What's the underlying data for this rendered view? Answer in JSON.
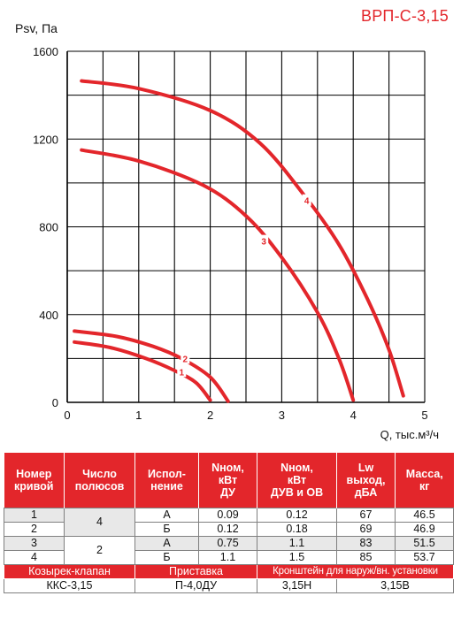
{
  "model": "ВРП-С-3,15",
  "chart_data": {
    "type": "line",
    "ylabel": "Psv, Па",
    "xlabel": "Q, тыс.м³/ч",
    "xlim": [
      0,
      5
    ],
    "ylim": [
      0,
      1600
    ],
    "x_ticks": [
      "0",
      "1",
      "2",
      "3",
      "4",
      "5"
    ],
    "y_ticks": [
      "0",
      "400",
      "800",
      "1200",
      "1600"
    ],
    "grid": true,
    "line_color": "#e3262b",
    "series": [
      {
        "name": "1",
        "label_at": [
          1.6,
          140
        ],
        "points": [
          [
            0.1,
            275
          ],
          [
            0.6,
            250
          ],
          [
            1.1,
            200
          ],
          [
            1.5,
            145
          ],
          [
            1.8,
            90
          ],
          [
            2.0,
            10
          ]
        ]
      },
      {
        "name": "2",
        "label_at": [
          1.65,
          200
        ],
        "points": [
          [
            0.1,
            325
          ],
          [
            0.7,
            300
          ],
          [
            1.2,
            255
          ],
          [
            1.6,
            200
          ],
          [
            2.0,
            115
          ],
          [
            2.25,
            5
          ]
        ]
      },
      {
        "name": "3",
        "label_at": [
          2.75,
          735
        ],
        "points": [
          [
            0.2,
            1150
          ],
          [
            1.0,
            1100
          ],
          [
            1.9,
            990
          ],
          [
            2.5,
            850
          ],
          [
            3.0,
            660
          ],
          [
            3.5,
            410
          ],
          [
            3.8,
            200
          ],
          [
            4.0,
            10
          ]
        ]
      },
      {
        "name": "4",
        "label_at": [
          3.35,
          920
        ],
        "points": [
          [
            0.2,
            1465
          ],
          [
            1.0,
            1430
          ],
          [
            2.0,
            1330
          ],
          [
            2.7,
            1180
          ],
          [
            3.3,
            950
          ],
          [
            3.8,
            720
          ],
          [
            4.2,
            470
          ],
          [
            4.5,
            240
          ],
          [
            4.7,
            30
          ]
        ]
      }
    ]
  },
  "table": {
    "headers": [
      [
        "Номер",
        "кривой"
      ],
      [
        "Число",
        "полюсов"
      ],
      [
        "Испол-",
        "нение"
      ],
      [
        "Nном,",
        "кВт",
        "ДУ"
      ],
      [
        "Nном,",
        "кВт",
        "ДУВ и ОВ"
      ],
      [
        "Lw",
        "выход,",
        "дБА"
      ],
      [
        "Масса,",
        "кг"
      ]
    ],
    "rows": [
      {
        "curve": "1",
        "type": "А",
        "n_du": "0.09",
        "n_duv": "0.12",
        "lw": "67",
        "mass": "46.5"
      },
      {
        "curve": "2",
        "type": "Б",
        "n_du": "0.12",
        "n_duv": "0.18",
        "lw": "69",
        "mass": "46.9"
      },
      {
        "curve": "3",
        "type": "А",
        "n_du": "0.75",
        "n_duv": "1.1",
        "lw": "83",
        "mass": "51.5"
      },
      {
        "curve": "4",
        "type": "Б",
        "n_du": "1.1",
        "n_duv": "1.5",
        "lw": "85",
        "mass": "53.7"
      }
    ],
    "poles": [
      "4",
      "2"
    ],
    "accessories": {
      "valve_label": "Козырек-клапан",
      "adapter_label": "Приставка",
      "bracket_label": "Кронштейн для наруж/вн. установки",
      "valve_value": "ККС-3,15",
      "adapter_value": "П-4,0ДУ",
      "bracket_h": "3,15Н",
      "bracket_v": "3,15В"
    }
  }
}
